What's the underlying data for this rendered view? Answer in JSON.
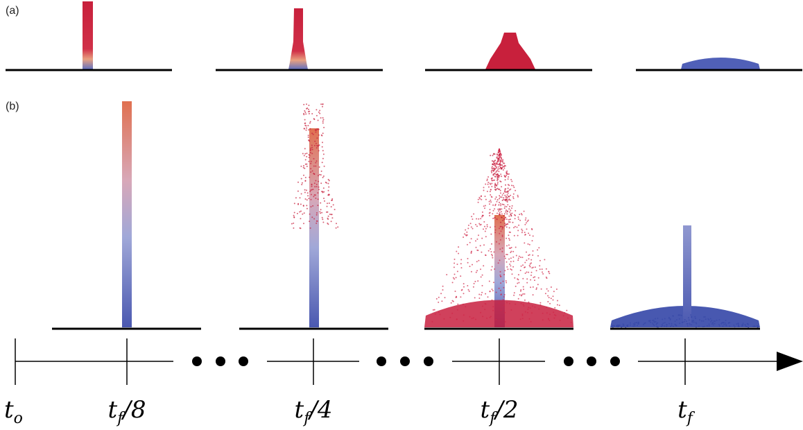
{
  "panels": {
    "a": "(a)",
    "b": "(b)"
  },
  "timeline": [
    {
      "base": "t",
      "sub": "o",
      "suffix": ""
    },
    {
      "base": "t",
      "sub": "f",
      "suffix": "/8"
    },
    {
      "base": "t",
      "sub": "f",
      "suffix": "/4"
    },
    {
      "base": "t",
      "sub": "f",
      "suffix": "/2"
    },
    {
      "base": "t",
      "sub": "f",
      "suffix": ""
    }
  ]
}
